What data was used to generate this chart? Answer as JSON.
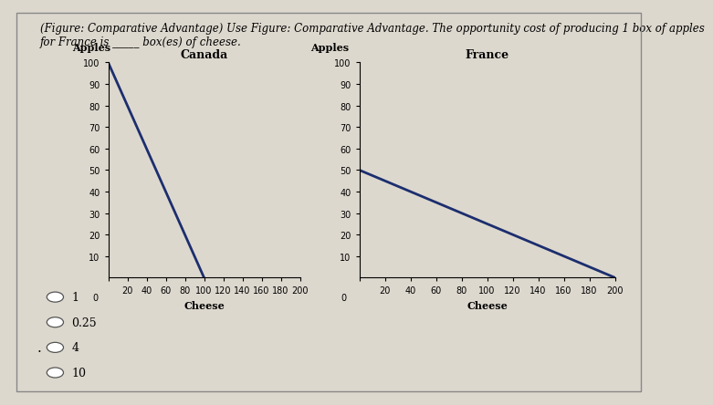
{
  "title_line1": "(Figure: Comparative Advantage) Use Figure: Comparative Advantage. The opportunity cost of producing 1 box of apples",
  "title_line2": "for France is _____ box(es) of cheese.",
  "canada_title": "Canada",
  "france_title": "France",
  "canada_line": {
    "x": [
      0,
      100
    ],
    "y": [
      100,
      0
    ]
  },
  "france_line": {
    "x": [
      0,
      200
    ],
    "y": [
      50,
      0
    ]
  },
  "xlim": [
    0,
    200
  ],
  "ylim": [
    0,
    100
  ],
  "xticks": [
    0,
    20,
    40,
    60,
    80,
    100,
    120,
    140,
    160,
    180,
    200
  ],
  "yticks": [
    10,
    20,
    30,
    40,
    50,
    60,
    70,
    80,
    90,
    100
  ],
  "xlabel": "Cheese",
  "ylabel_horiz": "Apples",
  "line_color": "#1c2e6e",
  "line_width": 2.0,
  "bg_color": "#ddd8ce",
  "choices": [
    "1",
    "0.25",
    "4",
    "10"
  ],
  "dot_before_index": 2,
  "title_fontsize": 8.5,
  "axis_label_fontsize": 8,
  "tick_fontsize": 7,
  "graph_title_fontsize": 9,
  "choice_fontsize": 9
}
